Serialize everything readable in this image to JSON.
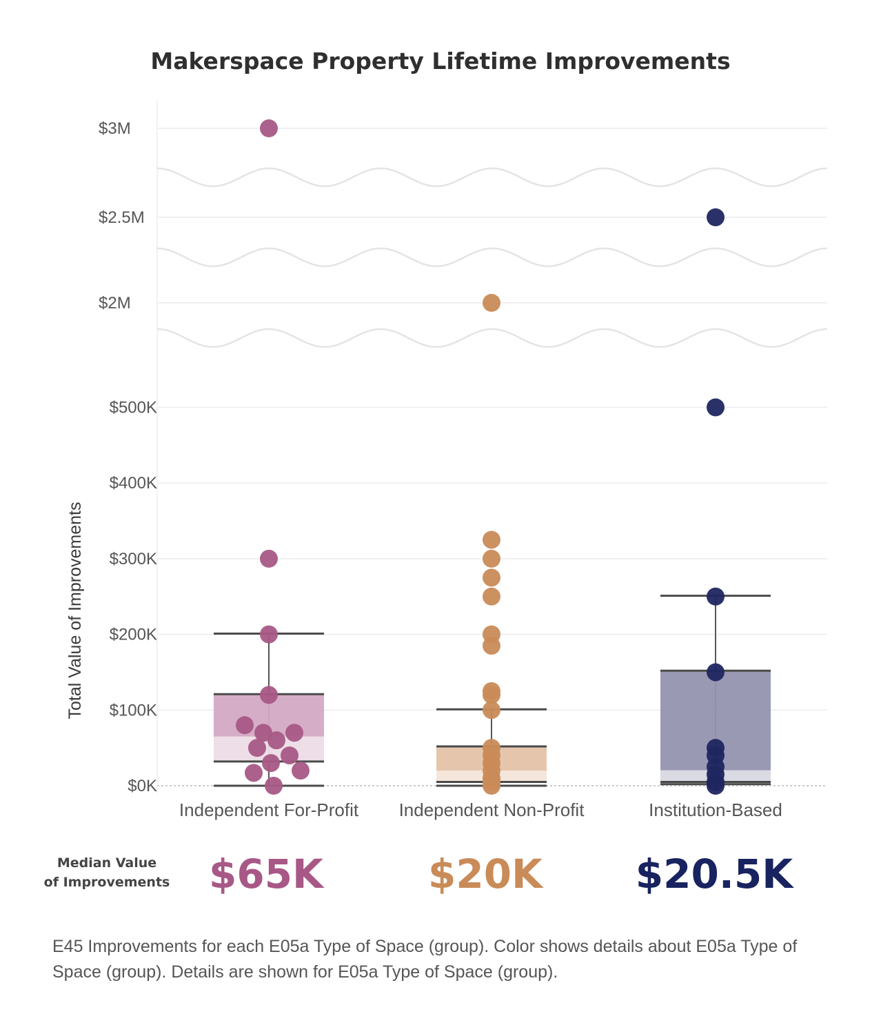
{
  "chart_data": {
    "type": "box-and-whisker with points",
    "title": "Makerspace Property Lifetime Improvements",
    "ylabel": "Total Value of Improvements",
    "y_ticks": [
      "$0K",
      "$100K",
      "$200K",
      "$300K",
      "$400K",
      "$500K",
      "$2M",
      "$2.5M",
      "$3M"
    ],
    "y_tick_values": [
      0,
      100000,
      200000,
      300000,
      400000,
      500000,
      2000000,
      2500000,
      3000000
    ],
    "axis_breaks": [
      "500K-2M",
      "2M-2.5M",
      "2.5M-3M"
    ],
    "grid": true,
    "categories": [
      "Independent For-Profit",
      "Independent Non-Profit",
      "Institution-Based"
    ],
    "colors": [
      "#a85886",
      "#c98b58",
      "#1f2660"
    ],
    "median_colors": [
      "#a85886",
      "#c98b58",
      "#182360"
    ],
    "series": [
      {
        "category": "Independent For-Profit",
        "points": [
          3000000,
          300000,
          200000,
          120000,
          80000,
          70000,
          70000,
          60000,
          50000,
          40000,
          30000,
          20000,
          17000,
          0
        ],
        "box": {
          "min": 0,
          "q1": 32000,
          "median": 65000,
          "q3": 121000,
          "max": 201000
        }
      },
      {
        "category": "Independent Non-Profit",
        "points": [
          2000000,
          325000,
          300000,
          275000,
          250000,
          200000,
          185000,
          125000,
          120000,
          100000,
          50000,
          40000,
          30000,
          20000,
          10000,
          5000,
          0
        ],
        "box": {
          "min": 0,
          "q1": 5000,
          "median": 20000,
          "q3": 52000,
          "max": 101000
        }
      },
      {
        "category": "Institution-Based",
        "points": [
          2500000,
          500000,
          250000,
          150000,
          50000,
          40000,
          25000,
          15000,
          5000,
          0
        ],
        "box": {
          "min": 2000,
          "q1": 5000,
          "median": 20500,
          "q3": 152000,
          "max": 251000
        }
      }
    ]
  },
  "medians": {
    "caption_line1": "Median Value",
    "caption_line2": "of Improvements",
    "values": [
      "$65K",
      "$20K",
      "$20.5K"
    ]
  },
  "footnote": "E45 Improvements for each E05a Type of Space (group).  Color shows details about E05a Type of Space (group).  Details are shown for E05a Type of Space (group)."
}
